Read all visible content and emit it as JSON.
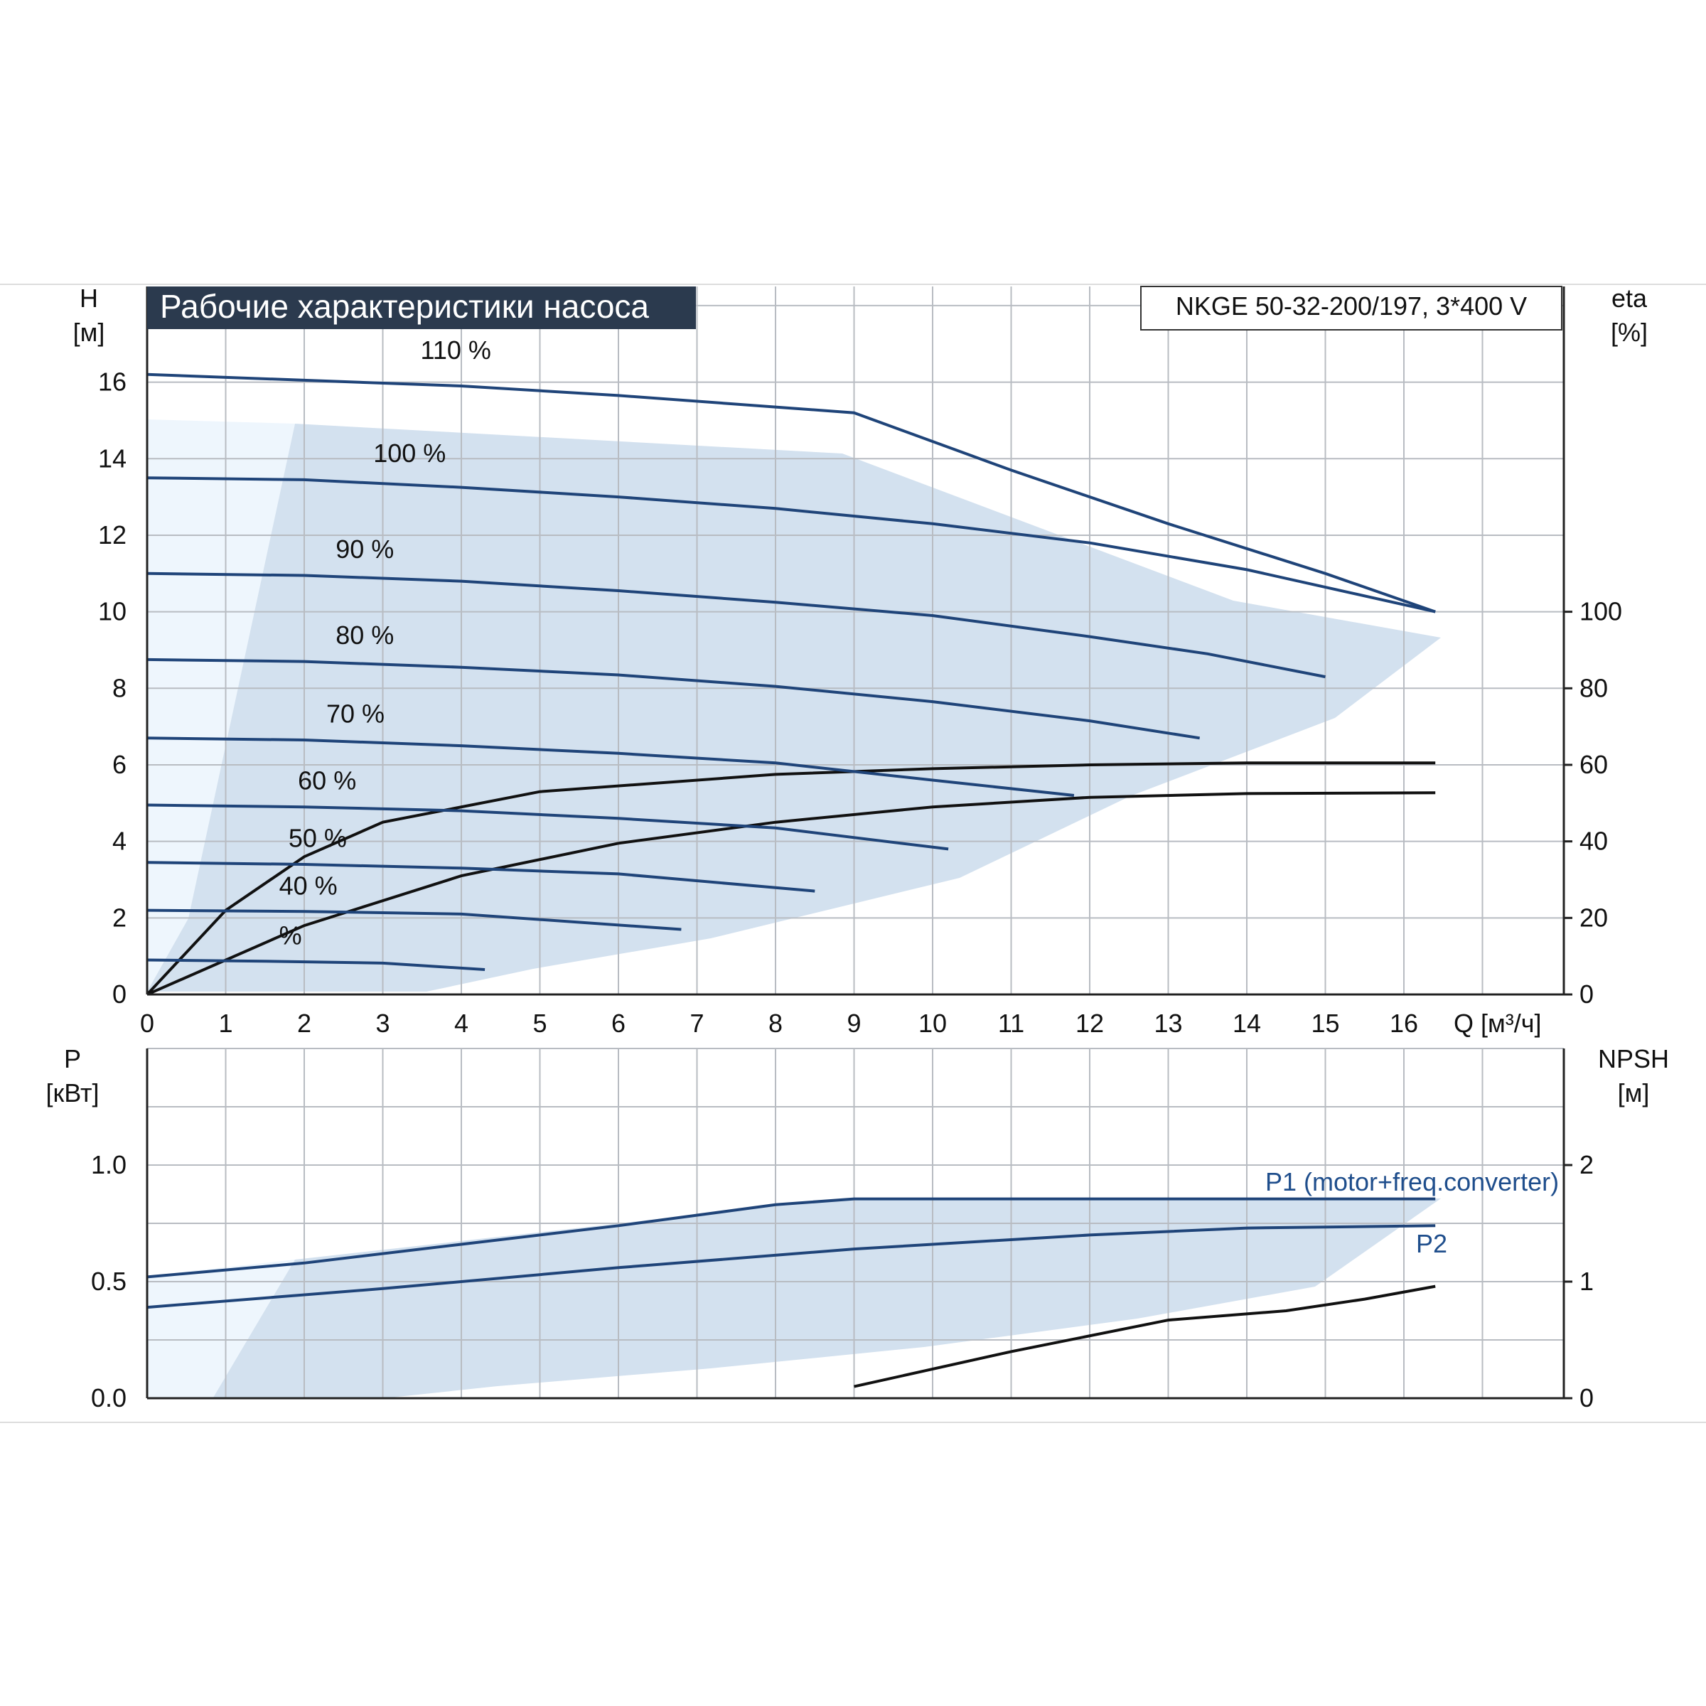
{
  "chart_data": [
    {
      "type": "line",
      "title": "Рабочие характеристики насоса",
      "model_label": "NKGE 50-32-200/197, 3*400 V",
      "ylabel": "H",
      "ylabel_unit": "[м]",
      "y2label": "eta",
      "y2label_unit": "[%]",
      "xlabel": "Q [м³/ч]",
      "xlim": [
        0,
        18
      ],
      "ylim": [
        0,
        18.5
      ],
      "y2lim": [
        0,
        185
      ],
      "x_ticks": [
        "0",
        "1",
        "2",
        "3",
        "4",
        "5",
        "6",
        "7",
        "8",
        "9",
        "10",
        "11",
        "12",
        "13",
        "14",
        "15",
        "16"
      ],
      "y_ticks": [
        "0",
        "2",
        "4",
        "6",
        "8",
        "10",
        "12",
        "14",
        "16"
      ],
      "y2_ticks": [
        "0",
        "20",
        "40",
        "60",
        "80",
        "100"
      ],
      "grid": true,
      "head_series": [
        {
          "name": "110 %",
          "x": [
            0,
            2,
            4,
            6,
            8,
            9,
            11,
            13,
            15,
            16.4
          ],
          "y": [
            16.2,
            16.05,
            15.9,
            15.65,
            15.35,
            15.2,
            13.7,
            12.3,
            11.0,
            10.0
          ]
        },
        {
          "name": "100 %",
          "x": [
            0,
            2,
            4,
            6,
            8,
            10,
            12,
            14,
            16.4
          ],
          "y": [
            13.5,
            13.45,
            13.25,
            13.0,
            12.7,
            12.3,
            11.8,
            11.1,
            10.0
          ]
        },
        {
          "name": "90 %",
          "x": [
            0,
            2,
            4,
            6,
            8,
            10,
            12,
            13.5,
            15
          ],
          "y": [
            11.0,
            10.95,
            10.8,
            10.55,
            10.25,
            9.9,
            9.35,
            8.9,
            8.3
          ]
        },
        {
          "name": "80 %",
          "x": [
            0,
            2,
            4,
            6,
            8,
            10,
            12,
            13.4
          ],
          "y": [
            8.75,
            8.7,
            8.55,
            8.35,
            8.05,
            7.65,
            7.15,
            6.7
          ]
        },
        {
          "name": "70 %",
          "x": [
            0,
            2,
            4,
            6,
            8,
            10,
            11.8
          ],
          "y": [
            6.7,
            6.65,
            6.5,
            6.3,
            6.05,
            5.6,
            5.2
          ]
        },
        {
          "name": "60 %",
          "x": [
            0,
            2,
            4,
            6,
            8,
            10.2
          ],
          "y": [
            4.95,
            4.9,
            4.8,
            4.6,
            4.35,
            3.8
          ]
        },
        {
          "name": "50 %",
          "x": [
            0,
            2,
            4,
            6,
            8.5
          ],
          "y": [
            3.45,
            3.4,
            3.3,
            3.15,
            2.7
          ]
        },
        {
          "name": "40 %",
          "x": [
            0,
            2,
            4,
            6.8
          ],
          "y": [
            2.2,
            2.17,
            2.1,
            1.7
          ]
        },
        {
          "name": "%",
          "x": [
            0,
            1.5,
            3,
            4.3
          ],
          "y": [
            0.9,
            0.87,
            0.82,
            0.65
          ]
        }
      ],
      "eta_series": [
        {
          "x": [
            0,
            1,
            2,
            3,
            5,
            8,
            10,
            12,
            14,
            16.4
          ],
          "y": [
            0,
            22,
            36,
            45,
            53,
            57.5,
            59,
            60,
            60.5,
            60.5
          ]
        },
        {
          "x": [
            0,
            2,
            4,
            6,
            8,
            10,
            12,
            14,
            16.4
          ],
          "y": [
            0,
            18,
            31,
            39.5,
            45,
            49,
            51.5,
            52.5,
            52.7
          ]
        }
      ]
    },
    {
      "type": "line",
      "ylabel": "P",
      "ylabel_unit": "[кВт]",
      "y2label": "NPSH",
      "y2label_unit": "[м]",
      "xlim": [
        0,
        18
      ],
      "ylim": [
        0,
        1.5
      ],
      "y2lim": [
        0,
        3
      ],
      "y_ticks": [
        "0.0",
        "0.5",
        "1.0"
      ],
      "y2_ticks": [
        "0",
        "1",
        "2"
      ],
      "grid": true,
      "series": [
        {
          "name": "P1 (motor+freq.converter)",
          "x": [
            0,
            2,
            4,
            6,
            8,
            9,
            12,
            16.4
          ],
          "y": [
            0.52,
            0.58,
            0.66,
            0.74,
            0.83,
            0.855,
            0.855,
            0.855
          ]
        },
        {
          "name": "P2",
          "x": [
            0,
            3,
            6,
            9,
            12,
            14,
            16.4
          ],
          "y": [
            0.39,
            0.47,
            0.56,
            0.64,
            0.7,
            0.73,
            0.74
          ]
        }
      ],
      "npsh_series": {
        "x": [
          9,
          11,
          13,
          14.5,
          15.5,
          16.4
        ],
        "y": [
          0.1,
          0.4,
          0.67,
          0.75,
          0.85,
          0.96
        ]
      }
    }
  ]
}
